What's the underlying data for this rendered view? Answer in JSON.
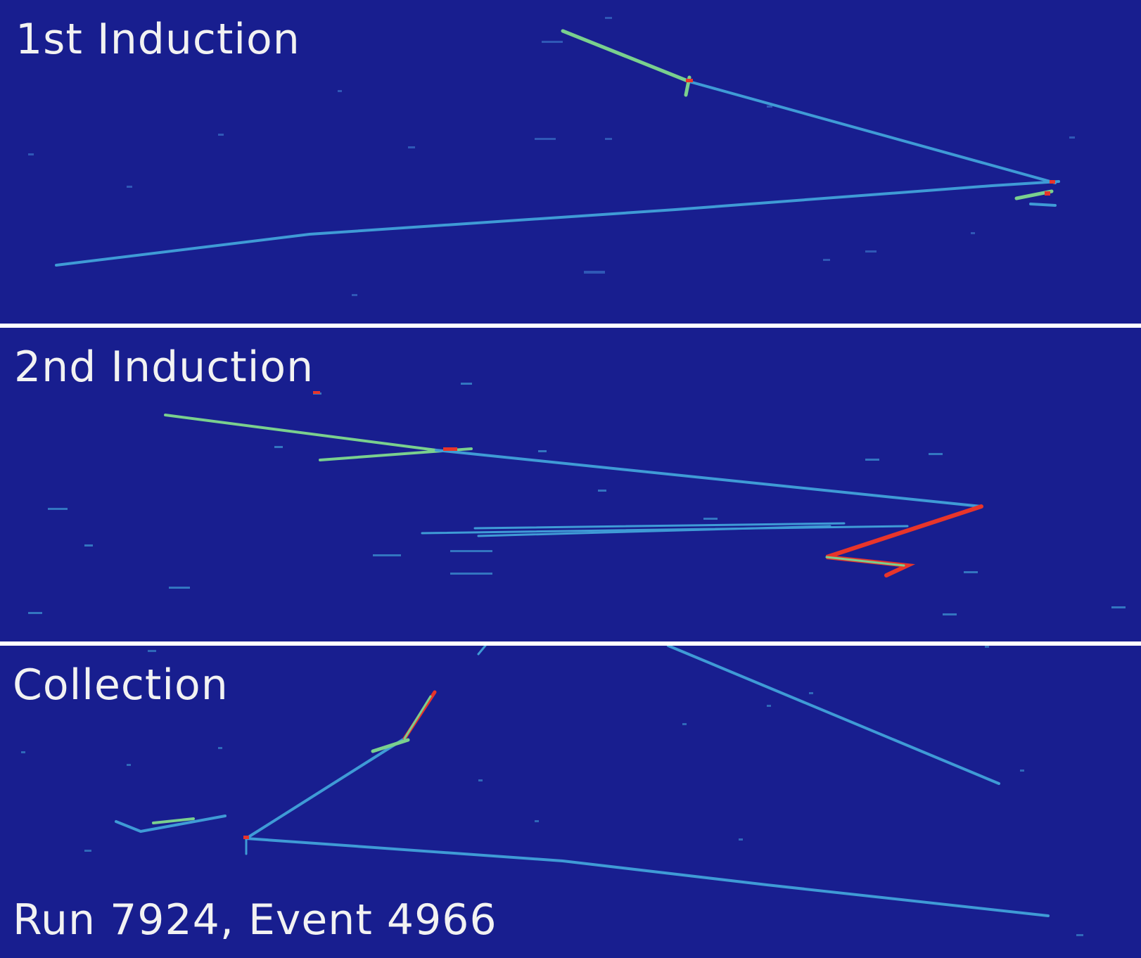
{
  "panels": {
    "first": {
      "title": "1st Induction"
    },
    "second": {
      "title": "2nd Induction"
    },
    "collection": {
      "title": "Collection"
    }
  },
  "event_label": "Run 7924, Event 4966",
  "colors": {
    "background": "#181e8f",
    "separator": "#ffffff",
    "label": "#f2f2f2",
    "track_low": "#3f9bd6",
    "track_mid": "#7ad08e",
    "track_high": "#e8352a"
  }
}
